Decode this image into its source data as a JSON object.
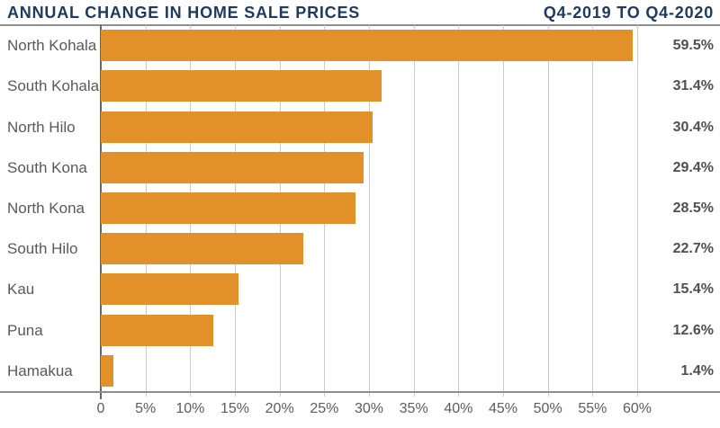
{
  "header": {
    "title": "ANNUAL CHANGE IN HOME SALE PRICES",
    "period": "Q4-2019 TO Q4-2020"
  },
  "colors": {
    "bar": "#E2902A",
    "heading": "#1E3A5F",
    "category_label": "#58595B",
    "value_label": "#4E4F51",
    "tick_label": "#5B5C5E",
    "gridline": "#CBCBCB",
    "axis_line": "#8F8F8F",
    "zero_line": "#63676B"
  },
  "chart_data": {
    "type": "bar",
    "orientation": "horizontal",
    "title": "ANNUAL CHANGE IN HOME SALE PRICES",
    "subtitle": "Q4-2019 TO Q4-2020",
    "categories": [
      "North Kohala",
      "South Kohala",
      "North Hilo",
      "South Kona",
      "North Kona",
      "South Hilo",
      "Kau",
      "Puna",
      "Hamakua"
    ],
    "values": [
      59.5,
      31.4,
      30.4,
      29.4,
      28.5,
      22.7,
      15.4,
      12.6,
      1.4
    ],
    "value_labels": [
      "59.5%",
      "31.4%",
      "30.4%",
      "29.4%",
      "28.5%",
      "22.7%",
      "15.4%",
      "12.6%",
      "1.4%"
    ],
    "x_ticks": [
      "0",
      "5%",
      "10%",
      "15%",
      "20%",
      "25%",
      "30%",
      "35%",
      "40%",
      "45%",
      "50%",
      "55%",
      "60%"
    ],
    "x_tick_values": [
      0,
      5,
      10,
      15,
      20,
      25,
      30,
      35,
      40,
      45,
      50,
      55,
      60
    ],
    "xlim": [
      0,
      60
    ],
    "grid": true,
    "legend": "none",
    "xlabel": "",
    "ylabel": ""
  }
}
